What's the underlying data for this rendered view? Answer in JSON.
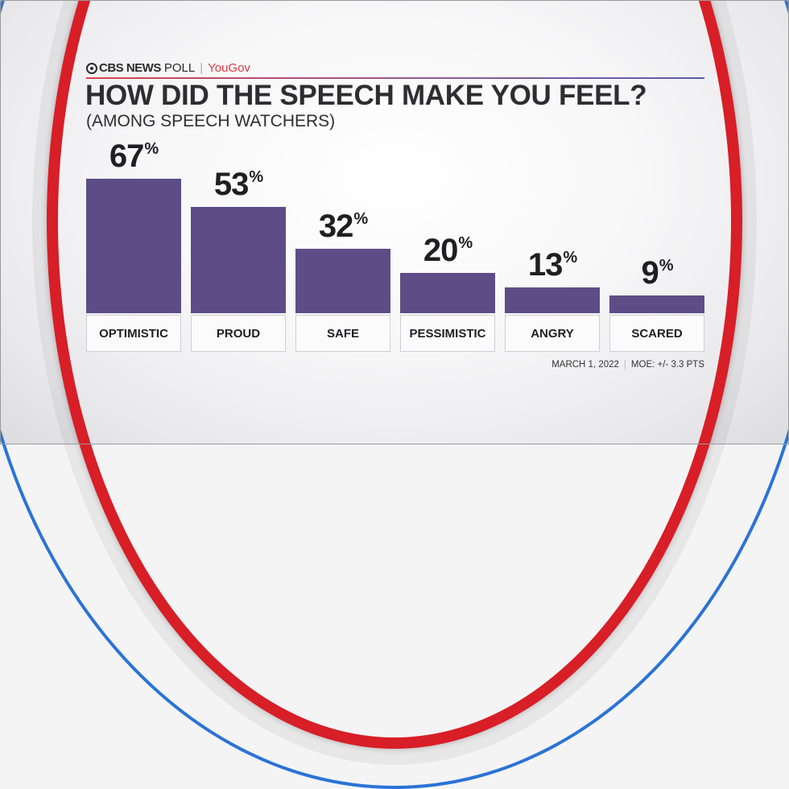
{
  "header": {
    "brand": "CBS NEWS",
    "brand_suffix": "POLL",
    "partner": "YouGov",
    "title": "HOW DID THE SPEECH MAKE YOU FEEL?",
    "subtitle": "(AMONG SPEECH WATCHERS)"
  },
  "footer": {
    "date": "MARCH 1, 2022",
    "moe": "MOE: +/- 3.3 PTS"
  },
  "colors": {
    "bar": "#5d4d87",
    "ring_red": "#d81e26",
    "ring_blue": "#2b73d6",
    "partner": "#e03a45"
  },
  "bars": [
    {
      "label": "OPTIMISTIC",
      "value": "67",
      "pct": "%"
    },
    {
      "label": "PROUD",
      "value": "53",
      "pct": "%"
    },
    {
      "label": "SAFE",
      "value": "32",
      "pct": "%"
    },
    {
      "label": "PESSIMISTIC",
      "value": "20",
      "pct": "%"
    },
    {
      "label": "ANGRY",
      "value": "13",
      "pct": "%"
    },
    {
      "label": "SCARED",
      "value": "9",
      "pct": "%"
    }
  ],
  "chart_data": {
    "type": "bar",
    "title": "HOW DID THE SPEECH MAKE YOU FEEL?",
    "subtitle": "(AMONG SPEECH WATCHERS)",
    "categories": [
      "OPTIMISTIC",
      "PROUD",
      "SAFE",
      "PESSIMISTIC",
      "ANGRY",
      "SCARED"
    ],
    "values": [
      67,
      53,
      32,
      20,
      13,
      9
    ],
    "unit": "%",
    "xlabel": "",
    "ylabel": "",
    "ylim": [
      0,
      100
    ],
    "grid": false,
    "legend": null,
    "source": "CBS NEWS POLL | YouGov",
    "annotations": [
      "MARCH 1, 2022",
      "MOE: +/- 3.3 PTS"
    ]
  }
}
